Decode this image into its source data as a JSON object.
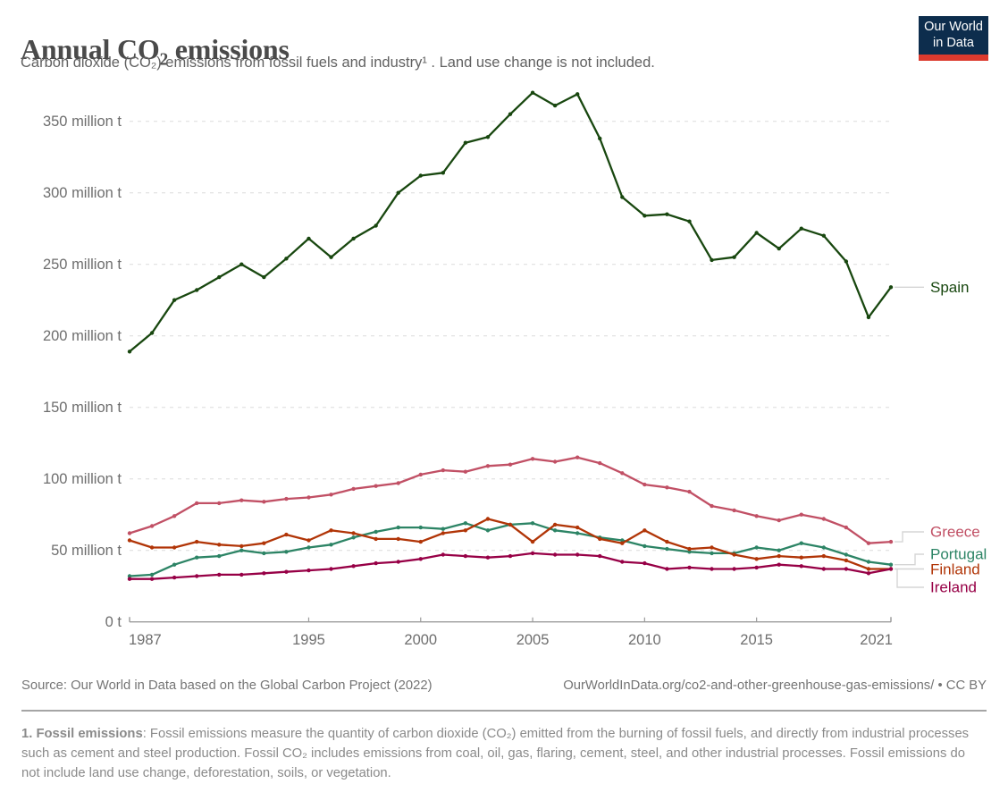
{
  "header": {
    "title": "Annual CO₂ emissions",
    "subtitle": "Carbon dioxide (CO₂) emissions from fossil fuels and industry¹ . Land use change is not included.",
    "logo": {
      "line1": "Our World",
      "line2": "in Data",
      "bg": "#0d2d4d",
      "stripe": "#dc3a2e"
    }
  },
  "chart_data": {
    "type": "line",
    "title": "Annual CO₂ emissions",
    "unit": "million t",
    "x": [
      1987,
      1988,
      1989,
      1990,
      1991,
      1992,
      1993,
      1994,
      1995,
      1996,
      1997,
      1998,
      1999,
      2000,
      2001,
      2002,
      2003,
      2004,
      2005,
      2006,
      2007,
      2008,
      2009,
      2010,
      2011,
      2012,
      2013,
      2014,
      2015,
      2016,
      2017,
      2018,
      2019,
      2020,
      2021
    ],
    "series": [
      {
        "name": "Spain",
        "color": "#18470F",
        "values": [
          189,
          202,
          225,
          232,
          241,
          250,
          241,
          254,
          268,
          255,
          268,
          277,
          300,
          312,
          314,
          335,
          339,
          355,
          370,
          361,
          369,
          338,
          297,
          284,
          285,
          280,
          253,
          255,
          272,
          261,
          275,
          270,
          252,
          213,
          234
        ]
      },
      {
        "name": "Greece",
        "color": "#C15065",
        "values": [
          62,
          67,
          74,
          83,
          83,
          85,
          84,
          86,
          87,
          89,
          93,
          95,
          97,
          103,
          106,
          105,
          109,
          110,
          114,
          112,
          115,
          111,
          104,
          96,
          94,
          91,
          81,
          78,
          74,
          71,
          75,
          72,
          66,
          55,
          56
        ]
      },
      {
        "name": "Portugal",
        "color": "#2C8465",
        "values": [
          32,
          33,
          40,
          45,
          46,
          50,
          48,
          49,
          52,
          54,
          59,
          63,
          66,
          66,
          65,
          69,
          64,
          68,
          69,
          64,
          62,
          59,
          57,
          53,
          51,
          49,
          48,
          48,
          52,
          50,
          55,
          52,
          47,
          42,
          40
        ]
      },
      {
        "name": "Finland",
        "color": "#B13507",
        "values": [
          57,
          52,
          52,
          56,
          54,
          53,
          55,
          61,
          57,
          64,
          62,
          58,
          58,
          56,
          62,
          64,
          72,
          68,
          56,
          68,
          66,
          58,
          55,
          64,
          56,
          51,
          52,
          47,
          44,
          46,
          45,
          46,
          43,
          37,
          37
        ]
      },
      {
        "name": "Ireland",
        "color": "#970046",
        "values": [
          30,
          30,
          31,
          32,
          33,
          33,
          34,
          35,
          36,
          37,
          39,
          41,
          42,
          44,
          47,
          46,
          45,
          46,
          48,
          47,
          47,
          46,
          42,
          41,
          37,
          38,
          37,
          37,
          38,
          40,
          39,
          37,
          37,
          34,
          37
        ]
      }
    ],
    "yticks": [
      {
        "value": 0,
        "label": "0 t"
      },
      {
        "value": 50,
        "label": "50 million t"
      },
      {
        "value": 100,
        "label": "100 million t"
      },
      {
        "value": 150,
        "label": "150 million t"
      },
      {
        "value": 200,
        "label": "200 million t"
      },
      {
        "value": 250,
        "label": "250 million t"
      },
      {
        "value": 300,
        "label": "300 million t"
      },
      {
        "value": 350,
        "label": "350 million t"
      }
    ],
    "xticks": [
      1987,
      1995,
      2000,
      2005,
      2010,
      2015,
      2021
    ],
    "xlim": [
      1987,
      2021
    ],
    "ylim": [
      0,
      380
    ],
    "grid": "horizontal-dashed",
    "legend_position": "right",
    "axis_color": "#9b9b9b",
    "grid_color": "#dcdcdc",
    "connector_color": "#d5d5d5"
  },
  "footer": {
    "source": "Source: Our World in Data based on the Global Carbon Project (2022)",
    "link": "OurWorldInData.org/co2-and-other-greenhouse-gas-emissions/",
    "separator": "•",
    "license": "CC BY",
    "note_title": "1. Fossil emissions",
    "note_body": ": Fossil emissions measure the quantity of carbon dioxide (CO₂) emitted from the burning of fossil fuels, and directly from industrial processes such as cement and steel production. Fossil CO₂ includes emissions from coal, oil, gas, flaring, cement, steel, and other industrial processes. Fossil emissions do not include land use change, deforestation, soils, or vegetation."
  }
}
